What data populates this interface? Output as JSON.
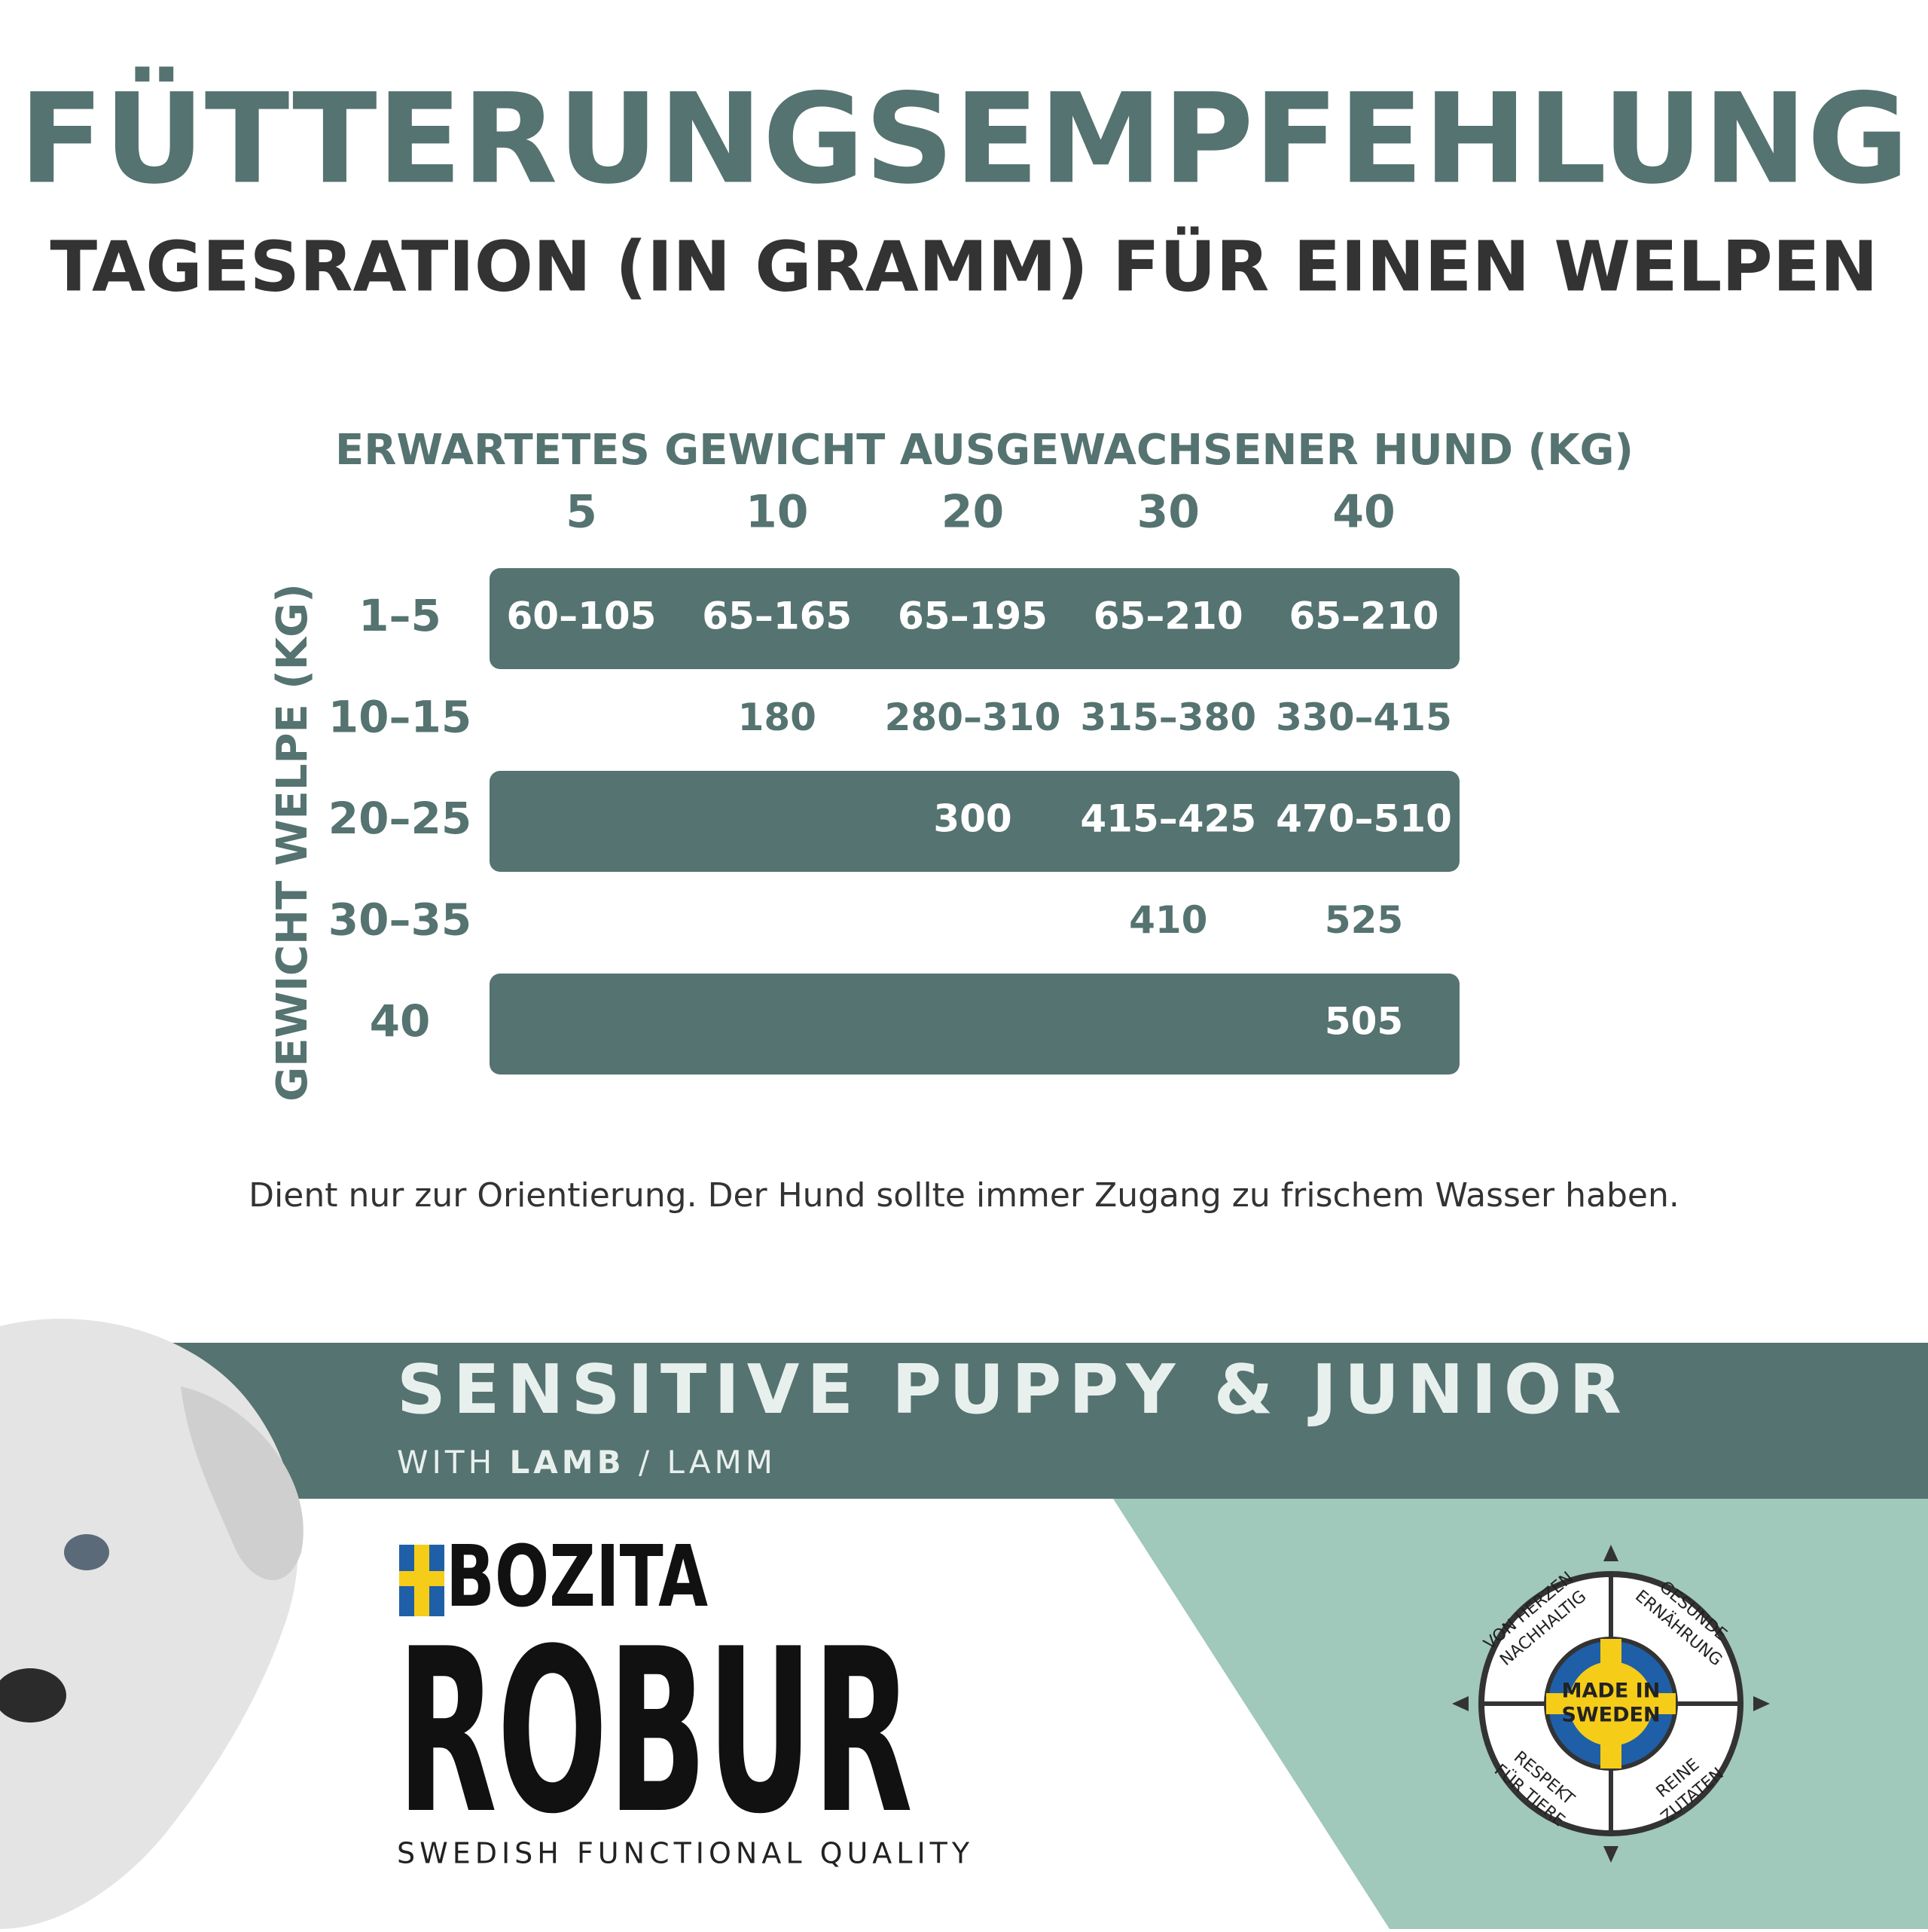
{
  "header": {
    "title": "FÜTTERUNGSEMPFEHLUNG",
    "subtitle": "TAGESRATION (IN GRAMM) FÜR EINEN WELPEN"
  },
  "table": {
    "column_header": "ERWARTETES GEWICHT AUSGEWACHSENER HUND (KG)",
    "row_header": "GEWICHT WELPE (KG)",
    "columns": [
      "5",
      "10",
      "20",
      "30",
      "40"
    ],
    "rows": [
      {
        "label": "1–5",
        "cells": [
          "60–105",
          "65–165",
          "65–195",
          "65–210",
          "65–210"
        ]
      },
      {
        "label": "10–15",
        "cells": [
          null,
          "180",
          "280–310",
          "315–380",
          "330–415"
        ]
      },
      {
        "label": "20–25",
        "cells": [
          null,
          null,
          "300",
          "415–425",
          "470–510"
        ]
      },
      {
        "label": "30–35",
        "cells": [
          null,
          null,
          null,
          "410",
          "525"
        ]
      },
      {
        "label": "40",
        "cells": [
          null,
          null,
          null,
          null,
          "505"
        ]
      }
    ]
  },
  "note": "Dient nur zur Orientierung. Der Hund sollte immer Zugang zu frischem Wasser haben.",
  "product": {
    "name": "SENSITIVE PUPPY & JUNIOR",
    "with": "WITH",
    "lamb": "LAMB",
    "rest": "/ LAMM"
  },
  "brand": {
    "maker": "BOZITA",
    "line": "ROBUR",
    "tagline": "SWEDISH FUNCTIONAL QUALITY"
  },
  "badge": {
    "center": [
      "MADE IN",
      "SWEDEN"
    ],
    "quadrants": [
      [
        "VON HERZEN",
        "NACHHALTIG"
      ],
      [
        "GESUNDE",
        "ERNÄHRUNG"
      ],
      [
        "RESPEKT",
        "FÜR TIERE"
      ],
      [
        "REINE",
        "ZUTATEN"
      ]
    ]
  }
}
